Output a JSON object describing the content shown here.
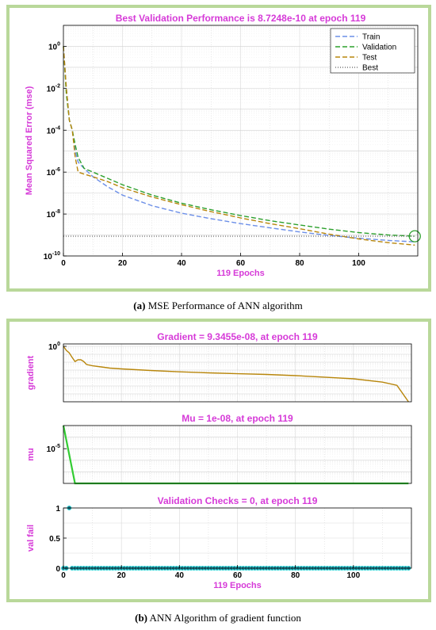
{
  "figure": {
    "caption_a": {
      "label": "(a)",
      "text": " MSE Performance of ANN algorithm"
    },
    "caption_b": {
      "label": "(b)",
      "text": " ANN Algorithm of gradient function"
    }
  },
  "chart_data": [
    {
      "id": "performance",
      "type": "line",
      "title": "Best Validation Performance is 8.7248e-10 at epoch 119",
      "xlabel": "119 Epochs",
      "ylabel": "Mean Squared Error  (mse)",
      "xlim": [
        0,
        120
      ],
      "ylim": [
        1e-10,
        10
      ],
      "yscale": "log",
      "grid": true,
      "legend_position": "top-right",
      "xticks": [
        {
          "v": 0,
          "label": "0"
        },
        {
          "v": 20,
          "label": "20"
        },
        {
          "v": 40,
          "label": "40"
        },
        {
          "v": 60,
          "label": "60"
        },
        {
          "v": 80,
          "label": "80"
        },
        {
          "v": 100,
          "label": "100"
        }
      ],
      "yticks": [
        {
          "v": 1,
          "base": "10",
          "exp": "0"
        },
        {
          "v": 0.01,
          "base": "10",
          "exp": "-2"
        },
        {
          "v": 0.0001,
          "base": "10",
          "exp": "-4"
        },
        {
          "v": 1e-06,
          "base": "10",
          "exp": "-6"
        },
        {
          "v": 1e-08,
          "base": "10",
          "exp": "-8"
        },
        {
          "v": 1e-10,
          "base": "10",
          "exp": "-10"
        }
      ],
      "series": [
        {
          "name": "Train",
          "color": "#6c8fe8",
          "dash": "6,3",
          "x": [
            0,
            1,
            2,
            3,
            4,
            5,
            7,
            10,
            15,
            20,
            30,
            40,
            50,
            60,
            70,
            80,
            90,
            100,
            110,
            119
          ],
          "y": [
            1.0,
            0.01,
            0.0003,
            0.0001,
            1e-05,
            3e-06,
            1.5e-06,
            6e-07,
            2e-07,
            8e-08,
            2.5e-08,
            1.1e-08,
            6e-09,
            3.5e-09,
            2.2e-09,
            1.4e-09,
            9.5e-10,
            7e-10,
            5.5e-10,
            4.7e-10
          ]
        },
        {
          "name": "Validation",
          "color": "#2ca02c",
          "dash": "6,3",
          "x": [
            0,
            1,
            2,
            3,
            4,
            5,
            7,
            10,
            15,
            20,
            30,
            40,
            50,
            60,
            70,
            80,
            90,
            100,
            110,
            119
          ],
          "y": [
            1.0,
            0.005,
            0.0003,
            0.0001,
            2e-05,
            5e-06,
            1.5e-06,
            1e-06,
            5e-07,
            2.5e-07,
            8e-08,
            3.3e-08,
            1.6e-08,
            8.5e-09,
            4.8e-09,
            3e-09,
            1.9e-09,
            1.3e-09,
            1e-09,
            8.7248e-10
          ]
        },
        {
          "name": "Test",
          "color": "#b8860b",
          "dash": "6,3",
          "x": [
            0,
            1,
            2,
            3,
            4,
            5,
            7,
            10,
            15,
            20,
            30,
            40,
            50,
            60,
            70,
            80,
            90,
            100,
            110,
            119
          ],
          "y": [
            1.0,
            0.01,
            0.0003,
            0.0001,
            5e-06,
            1e-06,
            8e-07,
            6e-07,
            3.5e-07,
            1.8e-07,
            6.5e-08,
            2.8e-08,
            1.3e-08,
            6.5e-09,
            3.5e-09,
            2e-09,
            1.1e-09,
            6.5e-10,
            4.3e-10,
            3.3e-10
          ]
        },
        {
          "name": "Best",
          "color": "#777777",
          "dash": "1,2",
          "x": [
            0,
            119
          ],
          "y": [
            8.7248e-10,
            8.7248e-10
          ]
        }
      ],
      "best_marker": {
        "x": 119,
        "y": 8.7248e-10,
        "color": "#2ca02c"
      }
    },
    {
      "id": "gradient",
      "type": "line",
      "title": "Gradient = 9.3455e-08, at epoch 119",
      "ylabel": "gradient",
      "xlim": [
        0,
        120
      ],
      "ylim": [
        1e-07,
        2
      ],
      "yscale": "log",
      "grid": true,
      "yticks": [
        {
          "v": 1,
          "base": "10",
          "exp": "0"
        }
      ],
      "series": [
        {
          "name": "",
          "color": "#b8860b",
          "x": [
            0,
            1,
            2,
            3,
            4,
            5,
            6,
            7,
            8,
            10,
            13,
            16,
            20,
            30,
            40,
            50,
            60,
            70,
            80,
            90,
            100,
            110,
            115,
            119
          ],
          "y": [
            1.0,
            0.3,
            0.15,
            0.04,
            0.012,
            0.02,
            0.02,
            0.012,
            0.005,
            0.0035,
            0.0025,
            0.0018,
            0.0014,
            0.0009,
            0.0006,
            0.00045,
            0.00035,
            0.00028,
            0.0002,
            0.00013,
            8e-05,
            3e-05,
            1.2e-05,
            9.3455e-08
          ]
        }
      ]
    },
    {
      "id": "mu",
      "type": "line",
      "title": "Mu = 1e-08, at epoch 119",
      "ylabel": "mu",
      "xlim": [
        0,
        120
      ],
      "ylim": [
        1e-08,
        0.001
      ],
      "yscale": "log",
      "grid": true,
      "yticks": [
        {
          "v": 1e-05,
          "base": "10",
          "exp": "-5"
        }
      ],
      "series": [
        {
          "name": "",
          "color": "#33cc33",
          "x": [
            0,
            4,
            5,
            119
          ],
          "y": [
            0.001,
            1e-08,
            1e-08,
            1e-08
          ]
        }
      ]
    },
    {
      "id": "valfail",
      "type": "scatter",
      "title": "Validation Checks = 0, at epoch 119",
      "xlabel": "119 Epochs",
      "ylabel": "val fail",
      "xlim": [
        0,
        120
      ],
      "ylim": [
        0,
        1
      ],
      "grid": true,
      "xticks": [
        {
          "v": 0,
          "label": "0"
        },
        {
          "v": 20,
          "label": "20"
        },
        {
          "v": 40,
          "label": "40"
        },
        {
          "v": 60,
          "label": "60"
        },
        {
          "v": 80,
          "label": "80"
        },
        {
          "v": 100,
          "label": "100"
        }
      ],
      "yticks": [
        {
          "v": 0,
          "label": "0"
        },
        {
          "v": 0.5,
          "label": "0.5"
        },
        {
          "v": 1,
          "label": "1"
        }
      ],
      "series": [
        {
          "name": "",
          "color": "#1f7a8c",
          "x_start": 0,
          "x_end": 119,
          "x_step": 1,
          "values_zero_except": {
            "2": 1
          }
        }
      ]
    }
  ]
}
